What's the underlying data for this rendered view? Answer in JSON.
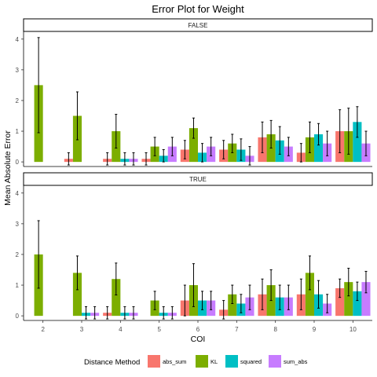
{
  "chart_data": {
    "type": "bar",
    "title": "Error Plot for Weight",
    "xlabel": "COI",
    "ylabel": "Mean Absolute Error",
    "categories": [
      "2",
      "3",
      "4",
      "5",
      "6",
      "7",
      "8",
      "9",
      "10"
    ],
    "yticks": [
      "0",
      "1",
      "2",
      "3",
      "4"
    ],
    "ylim": [
      -0.15,
      4.25
    ],
    "grid": false,
    "legend": {
      "title": "Distance Method",
      "placement": "bottom",
      "entries": [
        "abs_sum",
        "KL",
        "squared",
        "sum_abs"
      ]
    },
    "series_colors": [
      "#F8766D",
      "#7CAE00",
      "#00BFC4",
      "#C77CFF"
    ],
    "facets": [
      {
        "label": "FALSE",
        "series": [
          {
            "name": "abs_sum",
            "values": [
              null,
              0.1,
              0.1,
              0.1,
              0.4,
              0.4,
              0.8,
              0.3,
              1.0
            ],
            "err": [
              null,
              0.2,
              0.2,
              0.2,
              0.3,
              0.3,
              0.5,
              0.3,
              0.7
            ]
          },
          {
            "name": "KL",
            "values": [
              2.5,
              1.5,
              1.0,
              0.5,
              1.1,
              0.6,
              0.9,
              0.8,
              1.0
            ],
            "err": [
              1.55,
              0.78,
              0.55,
              0.3,
              0.33,
              0.3,
              0.45,
              0.5,
              0.75
            ]
          },
          {
            "name": "squared",
            "values": [
              null,
              null,
              0.1,
              0.2,
              0.3,
              0.4,
              0.7,
              0.9,
              1.3
            ],
            "err": [
              null,
              null,
              0.2,
              0.2,
              0.3,
              0.35,
              0.45,
              0.35,
              0.5
            ]
          },
          {
            "name": "sum_abs",
            "values": [
              null,
              null,
              0.1,
              0.5,
              0.5,
              0.2,
              0.5,
              0.6,
              0.6
            ],
            "err": [
              null,
              null,
              0.2,
              0.3,
              0.3,
              0.3,
              0.3,
              0.4,
              0.4
            ]
          }
        ]
      },
      {
        "label": "TRUE",
        "series": [
          {
            "name": "abs_sum",
            "values": [
              null,
              null,
              0.1,
              null,
              0.5,
              0.2,
              0.7,
              0.7,
              0.9
            ],
            "err": [
              null,
              null,
              0.2,
              null,
              0.5,
              0.3,
              0.5,
              0.5,
              0.3
            ]
          },
          {
            "name": "KL",
            "values": [
              2.0,
              1.4,
              1.2,
              0.5,
              1.0,
              0.7,
              1.0,
              1.4,
              1.1
            ],
            "err": [
              1.1,
              0.55,
              0.52,
              0.3,
              0.7,
              0.3,
              0.5,
              0.55,
              0.45
            ]
          },
          {
            "name": "squared",
            "values": [
              null,
              0.1,
              0.1,
              0.1,
              0.5,
              0.4,
              0.6,
              0.7,
              0.8
            ],
            "err": [
              null,
              0.2,
              0.2,
              0.2,
              0.3,
              0.3,
              0.4,
              0.45,
              0.3
            ]
          },
          {
            "name": "sum_abs",
            "values": [
              null,
              0.1,
              0.1,
              0.1,
              0.5,
              0.6,
              0.6,
              0.4,
              1.1
            ],
            "err": [
              null,
              0.2,
              0.2,
              0.2,
              0.3,
              0.4,
              0.4,
              0.3,
              0.35
            ]
          }
        ]
      }
    ]
  }
}
